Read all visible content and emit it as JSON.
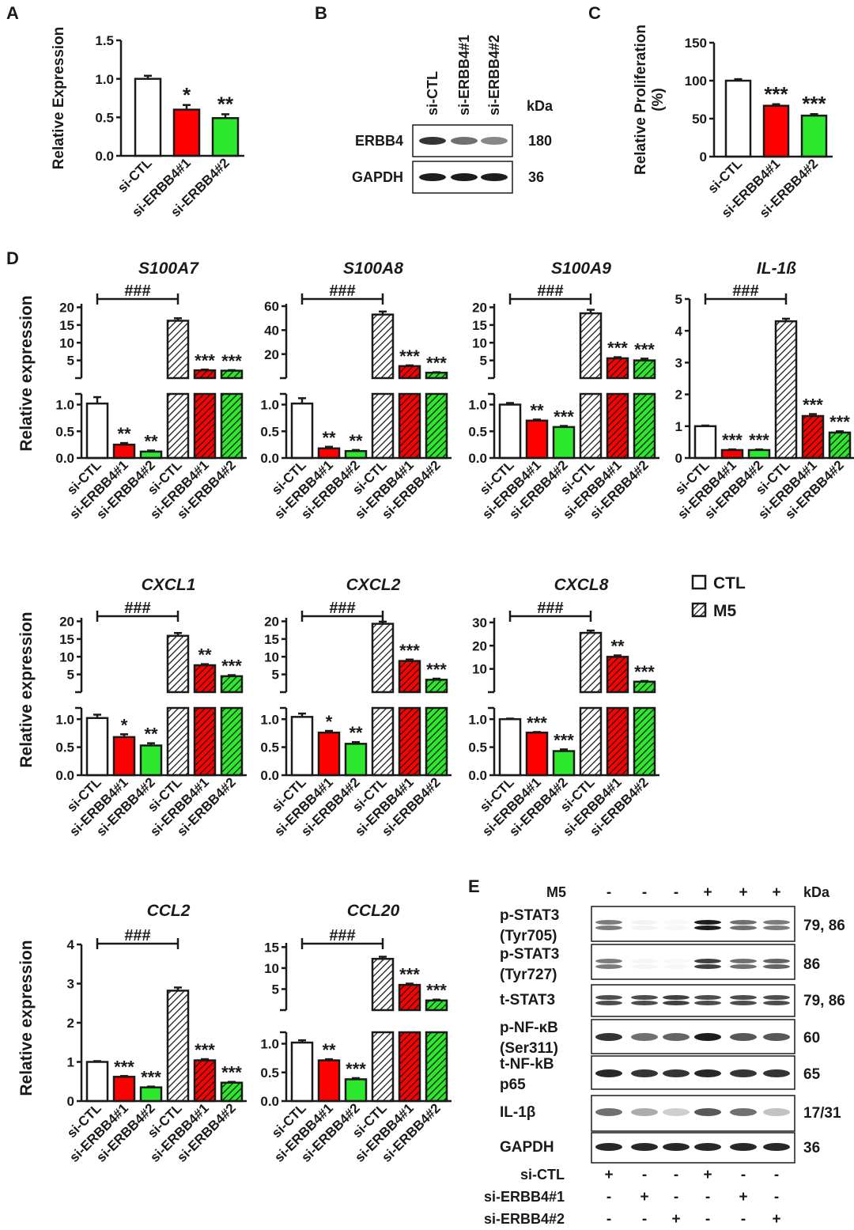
{
  "colors": {
    "ctl": "#ffffff",
    "erbb4_1": "#ff0000",
    "erbb4_2": "#2ee82e",
    "hatch": "#1a1a1a",
    "axis": "#1a1a1a"
  },
  "panel_labels": {
    "A": "A",
    "B": "B",
    "C": "C",
    "D": "D",
    "E": "E"
  },
  "legend": {
    "ctl": "CTL",
    "m5": "M5"
  },
  "sig": {
    "hash": "###"
  },
  "western_b": {
    "lanes": [
      "si-CTL",
      "si-ERBB4#1",
      "si-ERBB4#2"
    ],
    "kda_header": "kDa",
    "rows": [
      {
        "label": "ERBB4",
        "kda": "180",
        "intensity": [
          0.85,
          0.6,
          0.5
        ]
      },
      {
        "label": "GAPDH",
        "kda": "36",
        "intensity": [
          0.95,
          0.95,
          0.95
        ]
      }
    ]
  },
  "western_e": {
    "m5_label": "M5",
    "kda_header": "kDa",
    "m5_signs": [
      "-",
      "-",
      "-",
      "+",
      "+",
      "+"
    ],
    "rows": [
      {
        "label": "p-STAT3\n(Tyr705)",
        "kda": "79, 86",
        "intensity": [
          0.55,
          0.05,
          0.03,
          0.95,
          0.6,
          0.55
        ]
      },
      {
        "label": "p-STAT3\n(Tyr727)",
        "kda": "86",
        "intensity": [
          0.55,
          0.04,
          0.03,
          0.8,
          0.6,
          0.65
        ]
      },
      {
        "label": "t-STAT3",
        "kda": "79, 86",
        "intensity": [
          0.75,
          0.75,
          0.8,
          0.75,
          0.75,
          0.75
        ]
      },
      {
        "label": "p-NF-κB\n(Ser311)",
        "kda": "60",
        "intensity": [
          0.85,
          0.6,
          0.65,
          0.95,
          0.7,
          0.7
        ]
      },
      {
        "label": "t-NF-kB\np65",
        "kda": "65",
        "intensity": [
          0.9,
          0.85,
          0.85,
          0.9,
          0.85,
          0.85
        ]
      },
      {
        "label": "IL-1β",
        "kda": "17/31",
        "intensity": [
          0.6,
          0.35,
          0.2,
          0.7,
          0.6,
          0.25
        ]
      },
      {
        "label": "GAPDH",
        "kda": "36",
        "intensity": [
          0.9,
          0.9,
          0.9,
          0.9,
          0.9,
          0.9
        ]
      }
    ],
    "treatments": [
      {
        "label": "si-CTL",
        "signs": [
          "+",
          "-",
          "-",
          "+",
          "-",
          "-"
        ]
      },
      {
        "label": "si-ERBB4#1",
        "signs": [
          "-",
          "+",
          "-",
          "-",
          "+",
          "-"
        ]
      },
      {
        "label": "si-ERBB4#2",
        "signs": [
          "-",
          "-",
          "+",
          "-",
          "-",
          "+"
        ]
      }
    ]
  },
  "chart_data": [
    {
      "id": "A",
      "type": "bar",
      "title": "",
      "xlabel": "",
      "ylabel": "Relative Expression",
      "categories": [
        "si-CTL",
        "si-ERBB4#1",
        "si-ERBB4#2"
      ],
      "values": [
        1.0,
        0.6,
        0.49
      ],
      "errors": [
        0.04,
        0.06,
        0.05
      ],
      "annotations": [
        "",
        "*",
        "**"
      ],
      "ylim": [
        0,
        1.5
      ],
      "yticks": [
        "0.0",
        "0.5",
        "1.0",
        "1.5"
      ]
    },
    {
      "id": "C",
      "type": "bar",
      "title": "",
      "xlabel": "",
      "ylabel": "Relative Proliferation\n(%)",
      "categories": [
        "si-CTL",
        "si-ERBB4#1",
        "si-ERBB4#2"
      ],
      "values": [
        100,
        67,
        54
      ],
      "errors": [
        2,
        2,
        2
      ],
      "annotations": [
        "",
        "***",
        "***"
      ],
      "ylim": [
        0,
        150
      ],
      "yticks": [
        "0",
        "50",
        "100",
        "150"
      ]
    },
    {
      "id": "S100A7",
      "type": "bar",
      "title": "S100A7",
      "ylabel": "Relative expression",
      "categories": [
        "si-CTL",
        "si-ERBB4#1",
        "si-ERBB4#2",
        "si-CTL",
        "si-ERBB4#1",
        "si-ERBB4#2"
      ],
      "groups": [
        "CTL",
        "CTL",
        "CTL",
        "M5",
        "M5",
        "M5"
      ],
      "values": [
        1.02,
        0.25,
        0.12,
        16.2,
        2.2,
        2.1
      ],
      "errors": [
        0.12,
        0.03,
        0.02,
        0.7,
        0.2,
        0.15
      ],
      "annotations": [
        "",
        "**",
        "**",
        "",
        "***",
        "***"
      ],
      "bracket": "###",
      "broken_axis": {
        "lower": [
          0,
          1.2
        ],
        "upper": [
          0,
          21
        ],
        "upper_ticks": [
          "5",
          "10",
          "15",
          "20"
        ],
        "lower_ticks": [
          "0.0",
          "0.5",
          "1.0"
        ]
      }
    },
    {
      "id": "S100A8",
      "type": "bar",
      "title": "S100A8",
      "categories": [
        "si-CTL",
        "si-ERBB4#1",
        "si-ERBB4#2",
        "si-CTL",
        "si-ERBB4#1",
        "si-ERBB4#2"
      ],
      "groups": [
        "CTL",
        "CTL",
        "CTL",
        "M5",
        "M5",
        "M5"
      ],
      "values": [
        1.02,
        0.18,
        0.13,
        53,
        10,
        4.5
      ],
      "errors": [
        0.1,
        0.03,
        0.02,
        2.5,
        0.6,
        0.4
      ],
      "annotations": [
        "",
        "**",
        "**",
        "",
        "***",
        "***"
      ],
      "bracket": "###",
      "broken_axis": {
        "lower": [
          0,
          1.2
        ],
        "upper": [
          0,
          62
        ],
        "upper_ticks": [
          "20",
          "40",
          "60"
        ],
        "lower_ticks": [
          "0.0",
          "0.5",
          "1.0"
        ]
      }
    },
    {
      "id": "S100A9",
      "type": "bar",
      "title": "S100A9",
      "categories": [
        "si-CTL",
        "si-ERBB4#1",
        "si-ERBB4#2",
        "si-CTL",
        "si-ERBB4#1",
        "si-ERBB4#2"
      ],
      "groups": [
        "CTL",
        "CTL",
        "CTL",
        "M5",
        "M5",
        "M5"
      ],
      "values": [
        1.0,
        0.7,
        0.58,
        18.3,
        5.6,
        5.0
      ],
      "errors": [
        0.03,
        0.02,
        0.02,
        1.0,
        0.3,
        0.5
      ],
      "annotations": [
        "",
        "**",
        "***",
        "",
        "***",
        "***"
      ],
      "bracket": "###",
      "broken_axis": {
        "lower": [
          0,
          1.2
        ],
        "upper": [
          0,
          21
        ],
        "upper_ticks": [
          "5",
          "10",
          "15",
          "20"
        ],
        "lower_ticks": [
          "0.0",
          "0.5",
          "1.0"
        ]
      }
    },
    {
      "id": "IL-1ß",
      "type": "bar",
      "title": "IL-1ß",
      "categories": [
        "si-CTL",
        "si-ERBB4#1",
        "si-ERBB4#2",
        "si-CTL",
        "si-ERBB4#1",
        "si-ERBB4#2"
      ],
      "groups": [
        "CTL",
        "CTL",
        "CTL",
        "M5",
        "M5",
        "M5"
      ],
      "values": [
        1.0,
        0.25,
        0.25,
        4.3,
        1.32,
        0.8
      ],
      "errors": [
        0.02,
        0.02,
        0.02,
        0.08,
        0.06,
        0.04
      ],
      "annotations": [
        "",
        "***",
        "***",
        "",
        "***",
        "***"
      ],
      "bracket": "###",
      "ylim": [
        0,
        5
      ],
      "yticks": [
        "0",
        "1",
        "2",
        "3",
        "4",
        "5"
      ]
    },
    {
      "id": "CXCL1",
      "type": "bar",
      "title": "CXCL1",
      "ylabel": "Relative expression",
      "categories": [
        "si-CTL",
        "si-ERBB4#1",
        "si-ERBB4#2",
        "si-CTL",
        "si-ERBB4#1",
        "si-ERBB4#2"
      ],
      "groups": [
        "CTL",
        "CTL",
        "CTL",
        "M5",
        "M5",
        "M5"
      ],
      "values": [
        1.02,
        0.68,
        0.53,
        15.9,
        7.6,
        4.5
      ],
      "errors": [
        0.06,
        0.05,
        0.04,
        0.8,
        0.3,
        0.3
      ],
      "annotations": [
        "",
        "*",
        "**",
        "",
        "**",
        "***"
      ],
      "bracket": "###",
      "broken_axis": {
        "lower": [
          0,
          1.2
        ],
        "upper": [
          0,
          21
        ],
        "upper_ticks": [
          "5",
          "10",
          "15",
          "20"
        ],
        "lower_ticks": [
          "0.0",
          "0.5",
          "1.0"
        ]
      }
    },
    {
      "id": "CXCL2",
      "type": "bar",
      "title": "CXCL2",
      "categories": [
        "si-CTL",
        "si-ERBB4#1",
        "si-ERBB4#2",
        "si-CTL",
        "si-ERBB4#1",
        "si-ERBB4#2"
      ],
      "groups": [
        "CTL",
        "CTL",
        "CTL",
        "M5",
        "M5",
        "M5"
      ],
      "values": [
        1.04,
        0.76,
        0.56,
        19.3,
        8.8,
        3.5
      ],
      "errors": [
        0.06,
        0.03,
        0.03,
        0.6,
        0.4,
        0.3
      ],
      "annotations": [
        "",
        "*",
        "**",
        "",
        "***",
        "***"
      ],
      "bracket": "###",
      "broken_axis": {
        "lower": [
          0,
          1.2
        ],
        "upper": [
          0,
          21
        ],
        "upper_ticks": [
          "5",
          "10",
          "15",
          "20"
        ],
        "lower_ticks": [
          "0.0",
          "0.5",
          "1.0"
        ]
      }
    },
    {
      "id": "CXCL8",
      "type": "bar",
      "title": "CXCL8",
      "categories": [
        "si-CTL",
        "si-ERBB4#1",
        "si-ERBB4#2",
        "si-CTL",
        "si-ERBB4#1",
        "si-ERBB4#2"
      ],
      "groups": [
        "CTL",
        "CTL",
        "CTL",
        "M5",
        "M5",
        "M5"
      ],
      "values": [
        1.0,
        0.76,
        0.43,
        25.5,
        15.2,
        4.5
      ],
      "errors": [
        0.01,
        0.01,
        0.03,
        1.0,
        0.6,
        0.3
      ],
      "annotations": [
        "",
        "***",
        "***",
        "",
        "**",
        "***"
      ],
      "bracket": "###",
      "broken_axis": {
        "lower": [
          0,
          1.2
        ],
        "upper": [
          0,
          32
        ],
        "upper_ticks": [
          "10",
          "20",
          "30"
        ],
        "lower_ticks": [
          "0.0",
          "0.5",
          "1.0"
        ]
      }
    },
    {
      "id": "CCL2",
      "type": "bar",
      "title": "CCL2",
      "ylabel": "Relative expression",
      "categories": [
        "si-CTL",
        "si-ERBB4#1",
        "si-ERBB4#2",
        "si-CTL",
        "si-ERBB4#1",
        "si-ERBB4#2"
      ],
      "groups": [
        "CTL",
        "CTL",
        "CTL",
        "M5",
        "M5",
        "M5"
      ],
      "values": [
        1.0,
        0.62,
        0.35,
        2.82,
        1.04,
        0.47
      ],
      "errors": [
        0.02,
        0.02,
        0.02,
        0.08,
        0.03,
        0.02
      ],
      "annotations": [
        "",
        "***",
        "***",
        "",
        "***",
        "***"
      ],
      "bracket": "###",
      "ylim": [
        0,
        4
      ],
      "yticks": [
        "0",
        "1",
        "2",
        "3",
        "4"
      ]
    },
    {
      "id": "CCL20",
      "type": "bar",
      "title": "CCL20",
      "categories": [
        "si-CTL",
        "si-ERBB4#1",
        "si-ERBB4#2",
        "si-CTL",
        "si-ERBB4#1",
        "si-ERBB4#2"
      ],
      "groups": [
        "CTL",
        "CTL",
        "CTL",
        "M5",
        "M5",
        "M5"
      ],
      "values": [
        1.02,
        0.71,
        0.38,
        12.2,
        6.0,
        2.3
      ],
      "errors": [
        0.04,
        0.02,
        0.02,
        0.5,
        0.3,
        0.2
      ],
      "annotations": [
        "",
        "**",
        "***",
        "",
        "***",
        "***"
      ],
      "bracket": "###",
      "broken_axis": {
        "lower": [
          0,
          1.2
        ],
        "upper": [
          0,
          16
        ],
        "upper_ticks": [
          "5",
          "10",
          "15"
        ],
        "lower_ticks": [
          "0.0",
          "0.5",
          "1.0"
        ]
      }
    }
  ]
}
